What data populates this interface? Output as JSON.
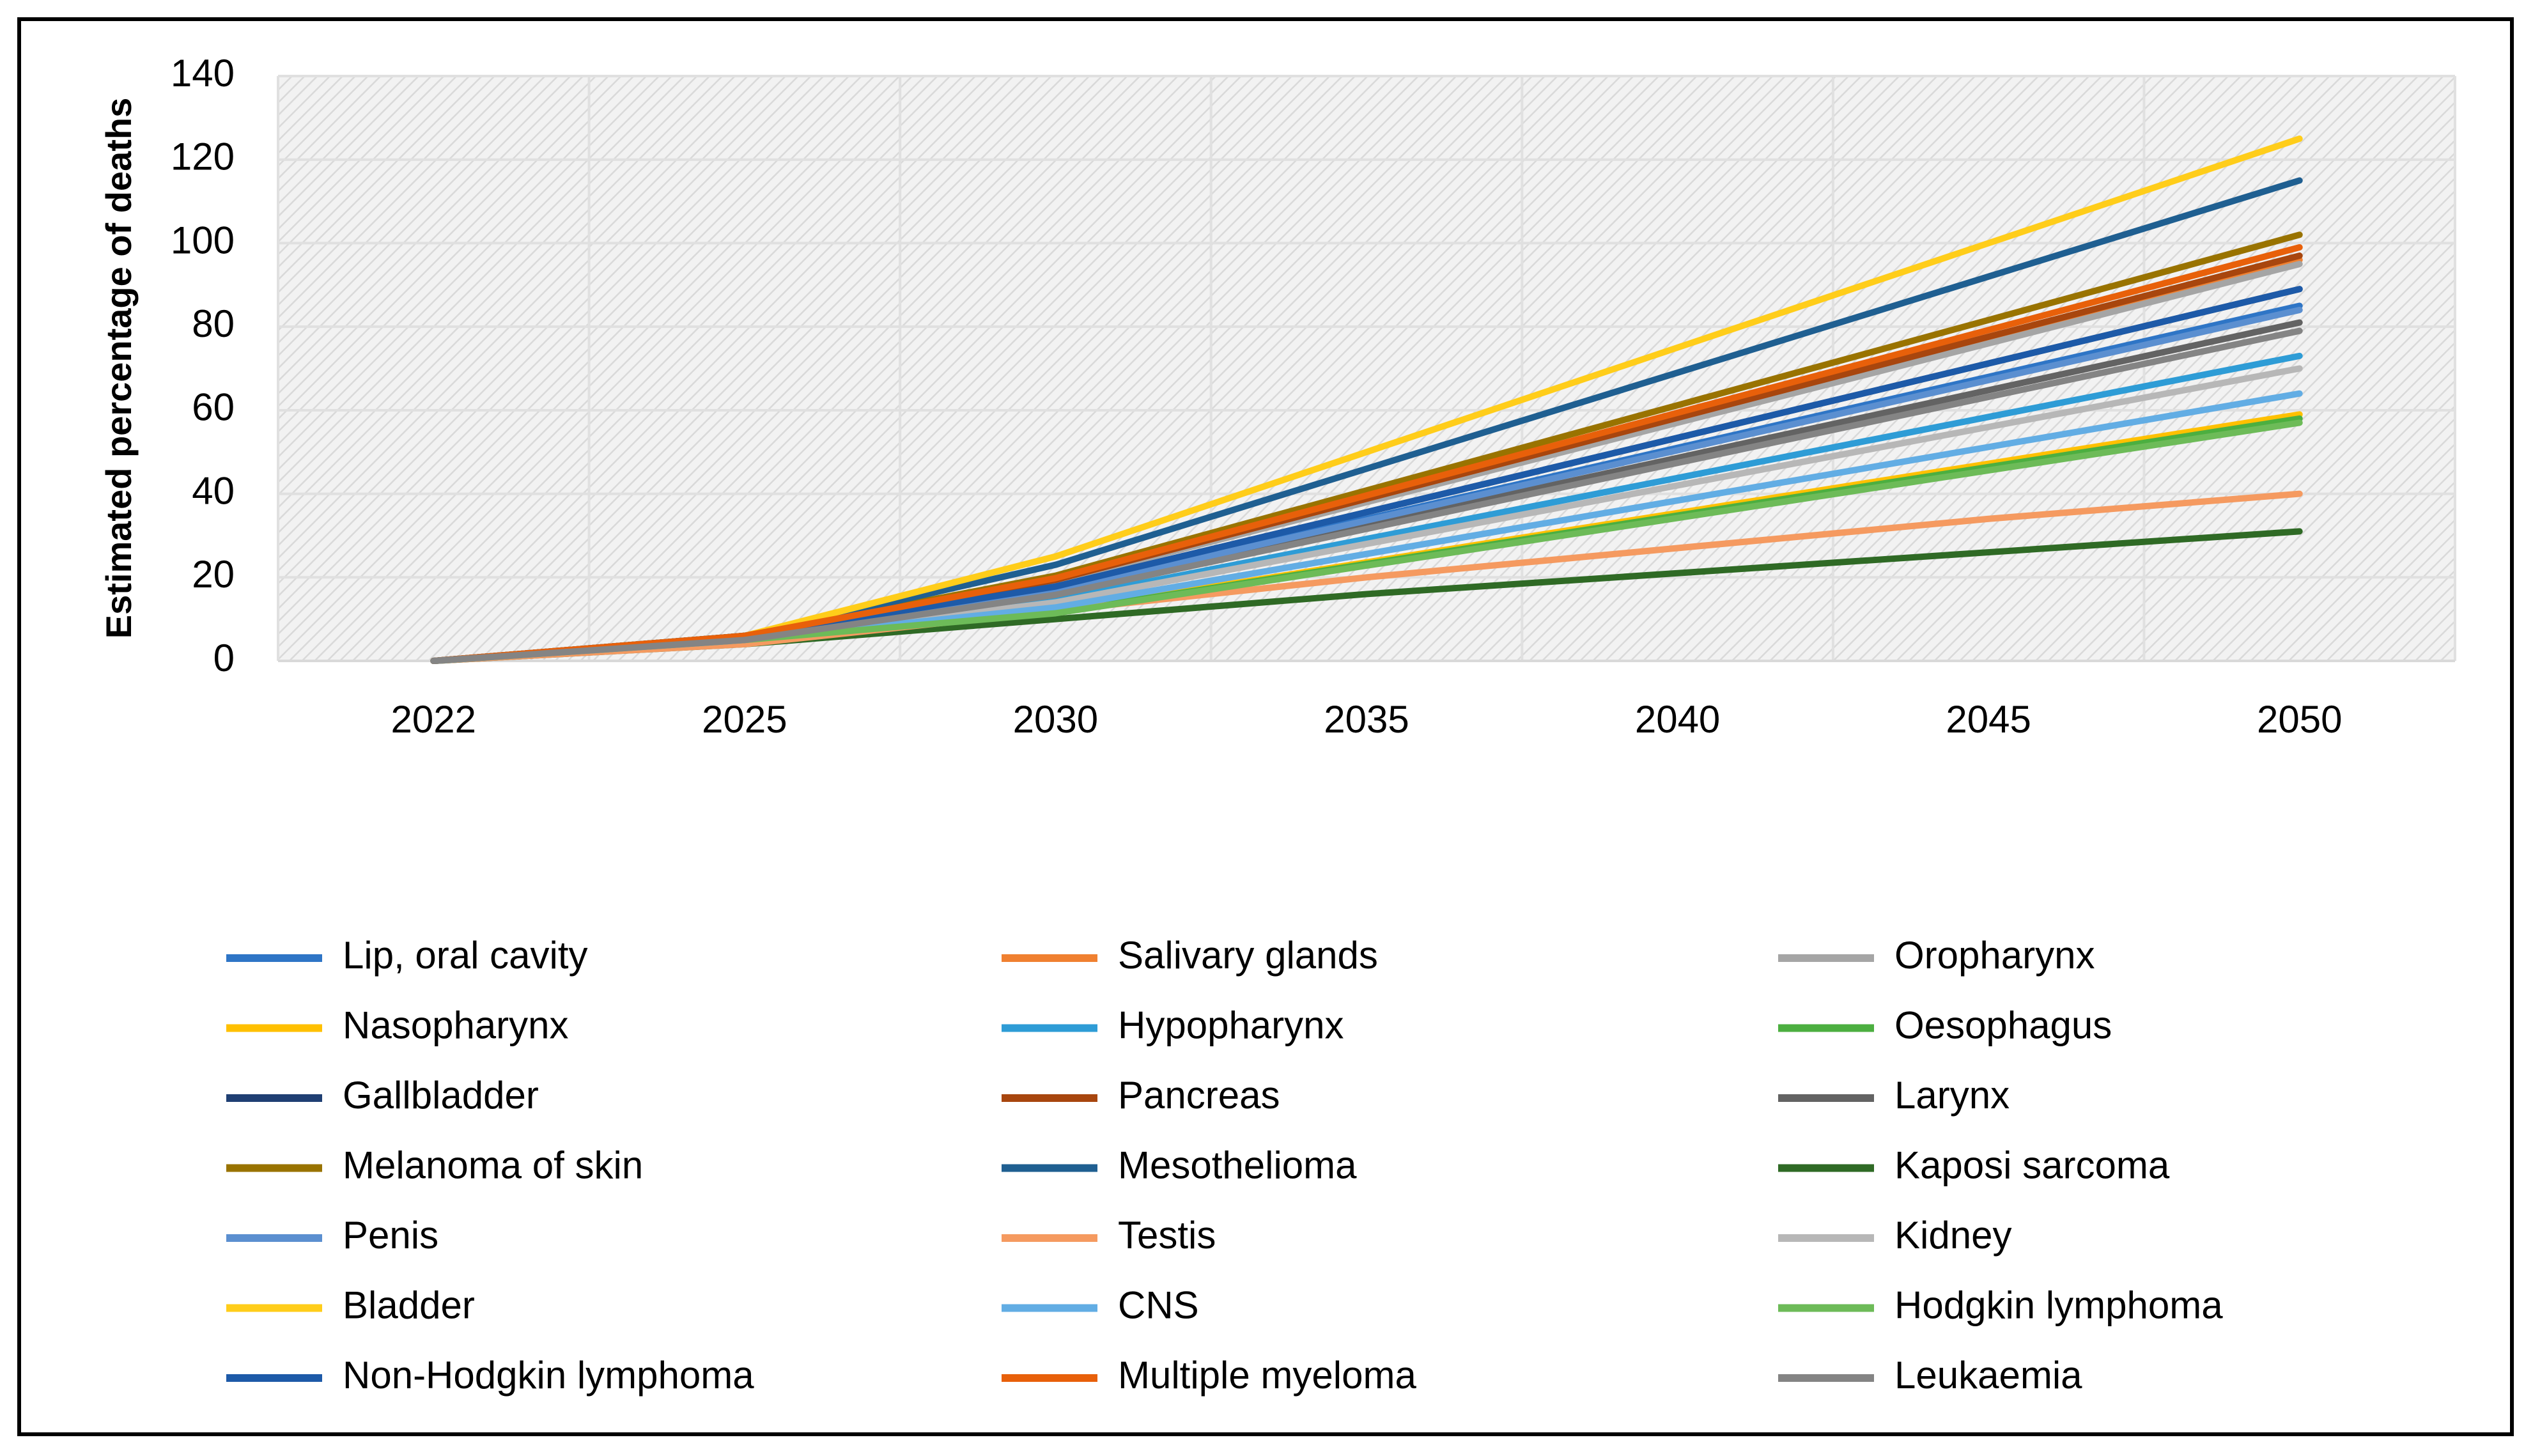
{
  "chart_data": {
    "type": "line",
    "y_label": "Estimated percentage of deaths",
    "categories": [
      "2022",
      "2025",
      "2030",
      "2035",
      "2040",
      "2045",
      "2050"
    ],
    "ylim": [
      0,
      140
    ],
    "yticks": [
      0,
      20,
      40,
      60,
      80,
      100,
      120,
      140
    ],
    "grid": true,
    "legend": "bottom",
    "series": [
      {
        "name": "Lip, oral cavity",
        "color": "#2e75c6",
        "values": [
          0,
          6,
          17,
          34,
          51,
          68,
          85
        ]
      },
      {
        "name": "Salivary glands",
        "color": "#f08030",
        "values": [
          0,
          6,
          19.2,
          38.4,
          57.6,
          76.8,
          96
        ]
      },
      {
        "name": "Oropharynx",
        "color": "#a5a5a5",
        "values": [
          0,
          6,
          19,
          38,
          57,
          76,
          95
        ]
      },
      {
        "name": "Nasopharynx",
        "color": "#ffc000",
        "values": [
          0,
          5,
          11.8,
          23.6,
          35.4,
          47.2,
          59
        ]
      },
      {
        "name": "Hypopharynx",
        "color": "#2e9cd6",
        "values": [
          0,
          5,
          14.6,
          29.2,
          43.8,
          58.4,
          73
        ]
      },
      {
        "name": "Oesophagus",
        "color": "#4caf40",
        "values": [
          0,
          5,
          11.6,
          23.2,
          34.8,
          46.4,
          58
        ]
      },
      {
        "name": "Gallbladder",
        "color": "#1f3f73",
        "values": [
          0,
          6,
          17.8,
          35.6,
          53.4,
          71.2,
          89
        ]
      },
      {
        "name": "Pancreas",
        "color": "#a8460e",
        "values": [
          0,
          6,
          19.4,
          38.8,
          58.2,
          77.6,
          97
        ]
      },
      {
        "name": "Larynx",
        "color": "#636363",
        "values": [
          0,
          5,
          16.2,
          32.4,
          48.6,
          64.8,
          81
        ]
      },
      {
        "name": "Melanoma of skin",
        "color": "#997300",
        "values": [
          0,
          6,
          20.4,
          40.8,
          61.2,
          81.6,
          102
        ]
      },
      {
        "name": "Mesothelioma",
        "color": "#1f5f91",
        "values": [
          0,
          6,
          23,
          46,
          69,
          92,
          115
        ]
      },
      {
        "name": "Kaposi sarcoma",
        "color": "#2f6a25",
        "values": [
          0,
          4,
          10,
          16,
          21,
          26,
          31
        ]
      },
      {
        "name": "Penis",
        "color": "#5b8fd0",
        "values": [
          0,
          5,
          16.8,
          33.6,
          50.4,
          67.2,
          84
        ]
      },
      {
        "name": "Testis",
        "color": "#f59a60",
        "values": [
          0,
          4,
          12,
          20,
          27,
          34,
          40
        ]
      },
      {
        "name": "Kidney",
        "color": "#b7b7b7",
        "values": [
          0,
          5,
          14,
          28,
          42,
          56,
          70
        ]
      },
      {
        "name": "Bladder",
        "color": "#ffcd1a",
        "values": [
          0,
          6,
          25,
          50,
          75,
          100,
          125
        ]
      },
      {
        "name": "CNS",
        "color": "#62ade4",
        "values": [
          0,
          5,
          12.8,
          25.6,
          38.4,
          51.2,
          64
        ]
      },
      {
        "name": "Hodgkin lymphoma",
        "color": "#6dbb58",
        "values": [
          0,
          5,
          11.4,
          22.8,
          34.2,
          45.6,
          57
        ]
      },
      {
        "name": "Non-Hodgkin lymphoma",
        "color": "#1d5aa8",
        "values": [
          0,
          6,
          17.8,
          35.6,
          53.4,
          71.2,
          89
        ]
      },
      {
        "name": "Multiple myeloma",
        "color": "#e8600a",
        "values": [
          0,
          6,
          19.8,
          39.6,
          59.4,
          79.2,
          99
        ]
      },
      {
        "name": "Leukaemia",
        "color": "#848484",
        "values": [
          0,
          5,
          15.8,
          31.6,
          47.4,
          63.2,
          79
        ]
      }
    ]
  }
}
